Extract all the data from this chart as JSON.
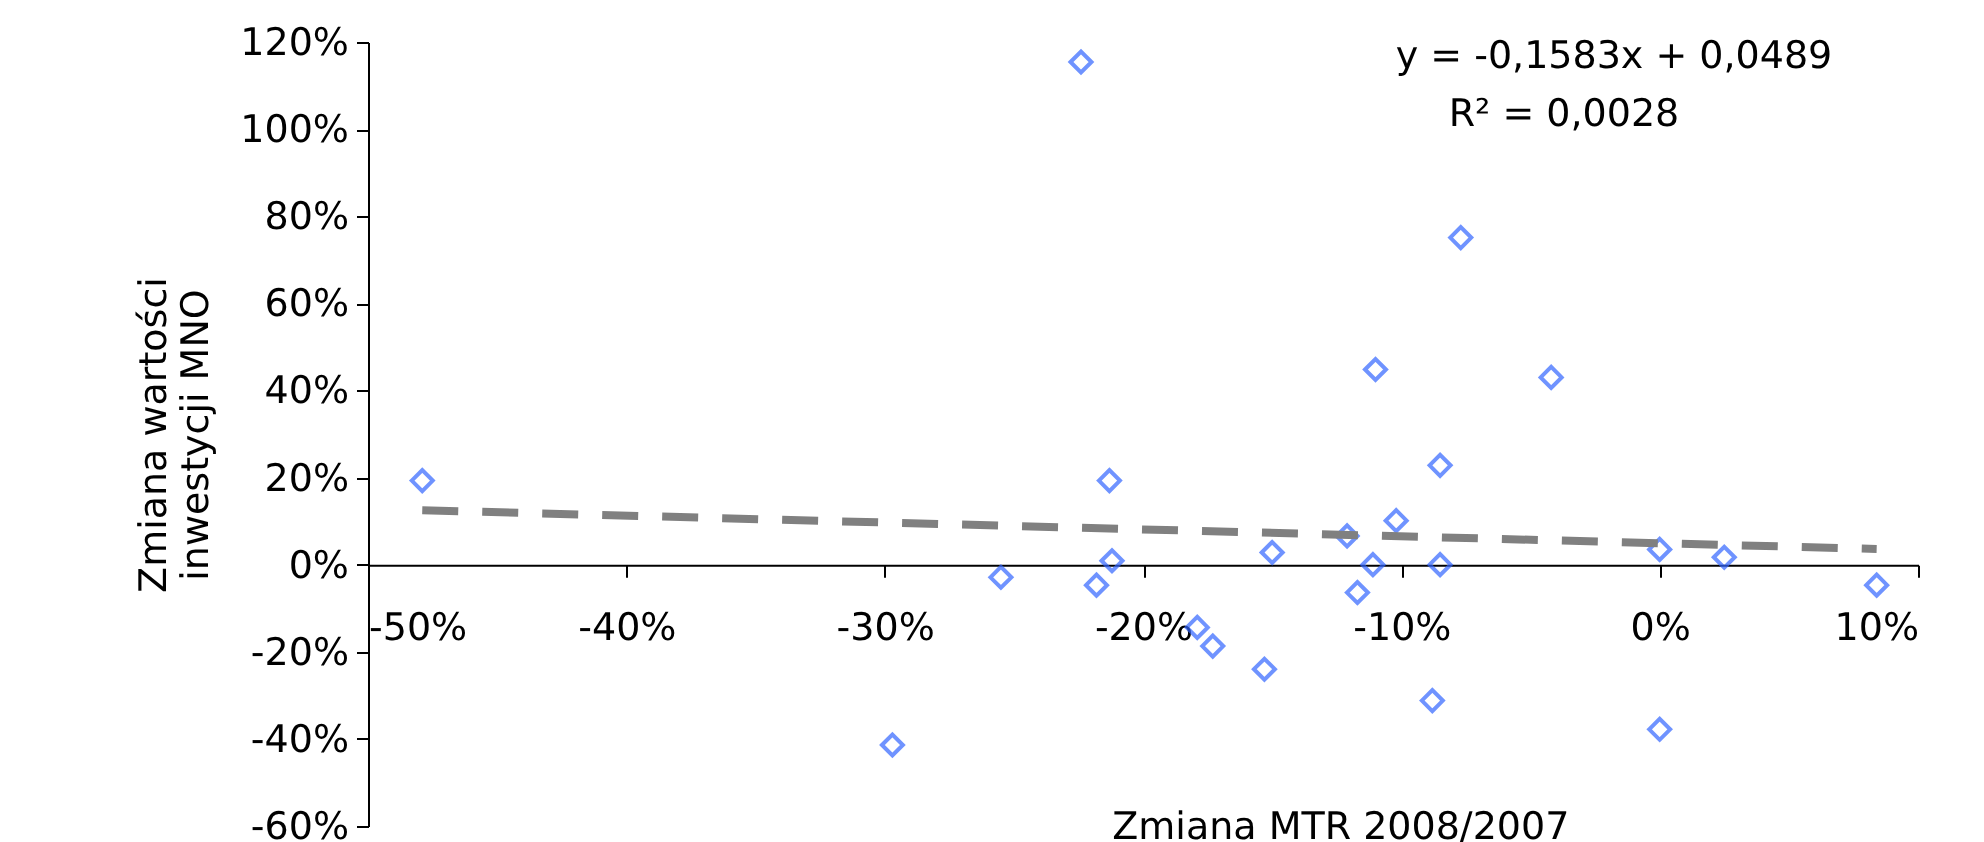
{
  "chart_data": {
    "type": "scatter",
    "xlabel": "Zmiana MTR 2008/2007",
    "ylabel": "Zmiana wartości\ninwestycji MNO",
    "annotations": [
      "y = -0,1583x + 0,0489",
      "R² = 0,0028"
    ],
    "xlim": [
      -0.5,
      0.1
    ],
    "ylim": [
      -0.6,
      1.2
    ],
    "xticks": [
      {
        "value": -0.5,
        "label": "-50%"
      },
      {
        "value": -0.4,
        "label": "-40%"
      },
      {
        "value": -0.3,
        "label": "-30%"
      },
      {
        "value": -0.2,
        "label": "-20%"
      },
      {
        "value": -0.1,
        "label": "-10%"
      },
      {
        "value": 0,
        "label": "0%"
      },
      {
        "value": 0.1,
        "label": "10%"
      }
    ],
    "yticks": [
      {
        "value": -0.6,
        "label": "-60%"
      },
      {
        "value": -0.4,
        "label": "-40%"
      },
      {
        "value": -0.2,
        "label": "-20%"
      },
      {
        "value": 0,
        "label": "0%"
      },
      {
        "value": 0.2,
        "label": "20%"
      },
      {
        "value": 0.4,
        "label": "40%"
      },
      {
        "value": 0.6,
        "label": "60%"
      },
      {
        "value": 0.8,
        "label": "80%"
      },
      {
        "value": 1,
        "label": "100%"
      },
      {
        "value": 1.2,
        "label": "120%"
      }
    ],
    "grid": false,
    "series": [
      {
        "color": "#3366ff",
        "marker": "diamond",
        "x": [
          -0.479,
          -0.224,
          -0.213,
          -0.212,
          -0.255,
          -0.218,
          -0.297,
          -0.179,
          -0.173,
          -0.153,
          -0.15,
          -0.121,
          -0.117,
          -0.111,
          -0.11,
          -0.102,
          -0.088,
          -0.085,
          -0.085,
          -0.077,
          -0.042,
          0.0,
          0.0,
          0.025,
          0.084
        ],
        "values": [
          0.193,
          1.154,
          0.193,
          0.009,
          -0.029,
          -0.047,
          -0.414,
          -0.144,
          -0.187,
          -0.24,
          0.028,
          0.066,
          -0.064,
          0.0,
          0.448,
          0.101,
          -0.312,
          0.228,
          0.0,
          0.751,
          0.43,
          0.035,
          -0.378,
          0.017,
          -0.047
        ]
      },
      {
        "type": "line",
        "color": "#808080",
        "line_style": "dashed",
        "x": [
          -0.479,
          0.084
        ],
        "values": [
          0.125,
          0.036
        ]
      }
    ]
  }
}
